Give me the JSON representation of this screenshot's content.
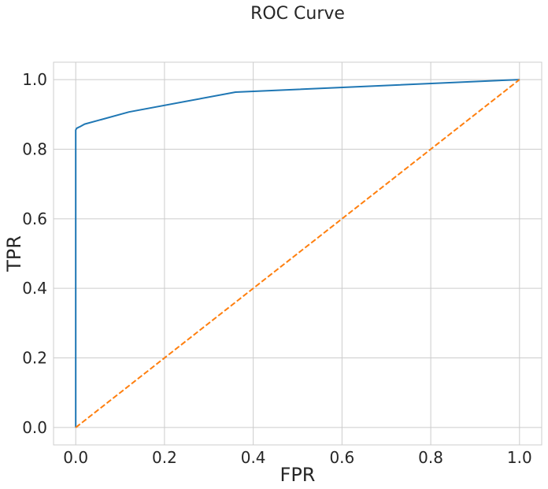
{
  "chart_data": {
    "type": "line",
    "title": "ROC Curve",
    "xlabel": "FPR",
    "ylabel": "TPR",
    "xlim": [
      -0.05,
      1.05
    ],
    "ylim": [
      -0.05,
      1.05
    ],
    "xticks": [
      0.0,
      0.2,
      0.4,
      0.6,
      0.8,
      1.0
    ],
    "xtick_labels": [
      "0.0",
      "0.2",
      "0.4",
      "0.6",
      "0.8",
      "1.0"
    ],
    "yticks": [
      0.0,
      0.2,
      0.4,
      0.6,
      0.8,
      1.0
    ],
    "ytick_labels": [
      "0.0",
      "0.2",
      "0.4",
      "0.6",
      "0.8",
      "1.0"
    ],
    "grid": true,
    "series": [
      {
        "color": "#1f77b4",
        "style": "solid",
        "x": [
          0.0,
          0.0,
          0.002,
          0.005,
          0.01,
          0.02,
          0.12,
          0.36,
          1.0
        ],
        "y": [
          0.0,
          0.855,
          0.86,
          0.862,
          0.865,
          0.872,
          0.907,
          0.964,
          1.0
        ]
      },
      {
        "color": "#ff7f0e",
        "style": "dashed",
        "x": [
          0.0,
          1.0
        ],
        "y": [
          0.0,
          1.0
        ]
      }
    ]
  }
}
